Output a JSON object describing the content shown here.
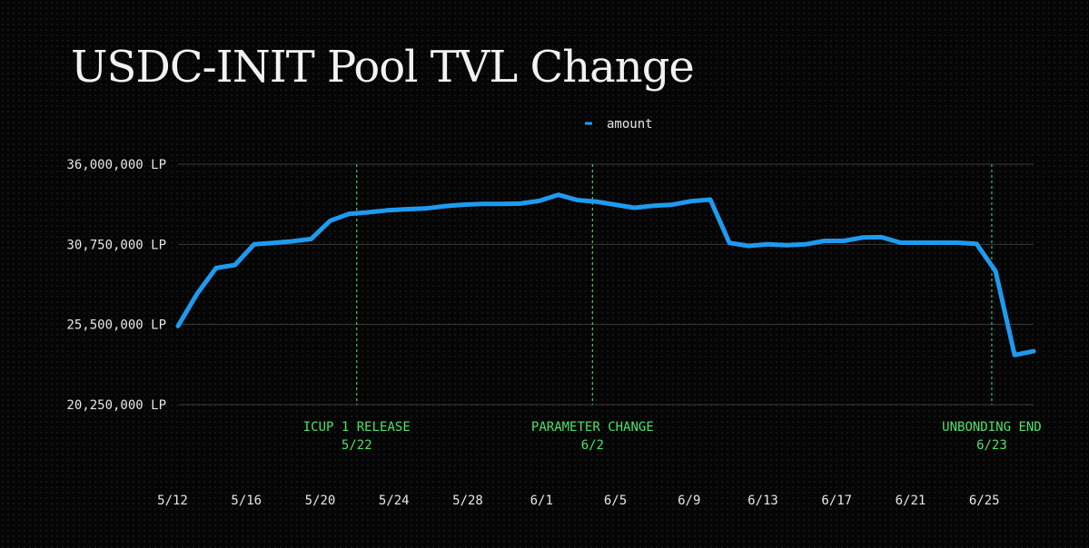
{
  "chart_data": {
    "type": "line",
    "title": "USDC-INIT Pool TVL Change",
    "xlabel": "",
    "ylabel": "",
    "grid": true,
    "legend_position": "top-center",
    "colors": {
      "line": "#1e9bf0",
      "grid": "#3a3a3a",
      "annotation": "#4ce36a",
      "text": "#e6e6e6"
    },
    "x_tick_labels": [
      "5/12",
      "5/16",
      "5/20",
      "5/24",
      "5/28",
      "6/1",
      "6/5",
      "6/9",
      "6/13",
      "6/17",
      "6/21",
      "6/25"
    ],
    "y_tick_labels": [
      "36,000,000 LP",
      "30,750,000 LP",
      "25,500,000 LP",
      "20,250,000 LP"
    ],
    "y_ticks": [
      36000000,
      30750000,
      25500000,
      20250000
    ],
    "ylim": [
      20250000,
      36000000
    ],
    "x_start_day": 0,
    "x_end_day": 45,
    "series": [
      {
        "name": "amount",
        "x": [
          0,
          1,
          2,
          3,
          4,
          5,
          6,
          7,
          8,
          9,
          10,
          11,
          12,
          13,
          14,
          15,
          16,
          17,
          18,
          19,
          20,
          21,
          22,
          23,
          24,
          25,
          26,
          27,
          28,
          29,
          30,
          31,
          32,
          33,
          34,
          35,
          36,
          37,
          38,
          39,
          40,
          41,
          42,
          43,
          44,
          45
        ],
        "values": [
          25400000,
          27500000,
          29200000,
          29400000,
          30750000,
          30850000,
          30950000,
          31100000,
          32300000,
          32750000,
          32850000,
          32980000,
          33050000,
          33100000,
          33250000,
          33350000,
          33400000,
          33400000,
          33420000,
          33600000,
          34000000,
          33650000,
          33550000,
          33350000,
          33150000,
          33280000,
          33350000,
          33580000,
          33680000,
          30850000,
          30650000,
          30750000,
          30700000,
          30750000,
          30980000,
          30980000,
          31200000,
          31220000,
          30860000,
          30860000,
          30860000,
          30860000,
          30780000,
          29000000,
          23500000,
          23750000
        ]
      }
    ],
    "annotations": [
      {
        "x": 9.4,
        "line1": "ICUP 1 RELEASE",
        "line2": "5/22"
      },
      {
        "x": 21.8,
        "line1": "PARAMETER CHANGE",
        "line2": "6/2"
      },
      {
        "x": 42.8,
        "line1": "UNBONDING END",
        "line2": "6/23"
      }
    ]
  }
}
